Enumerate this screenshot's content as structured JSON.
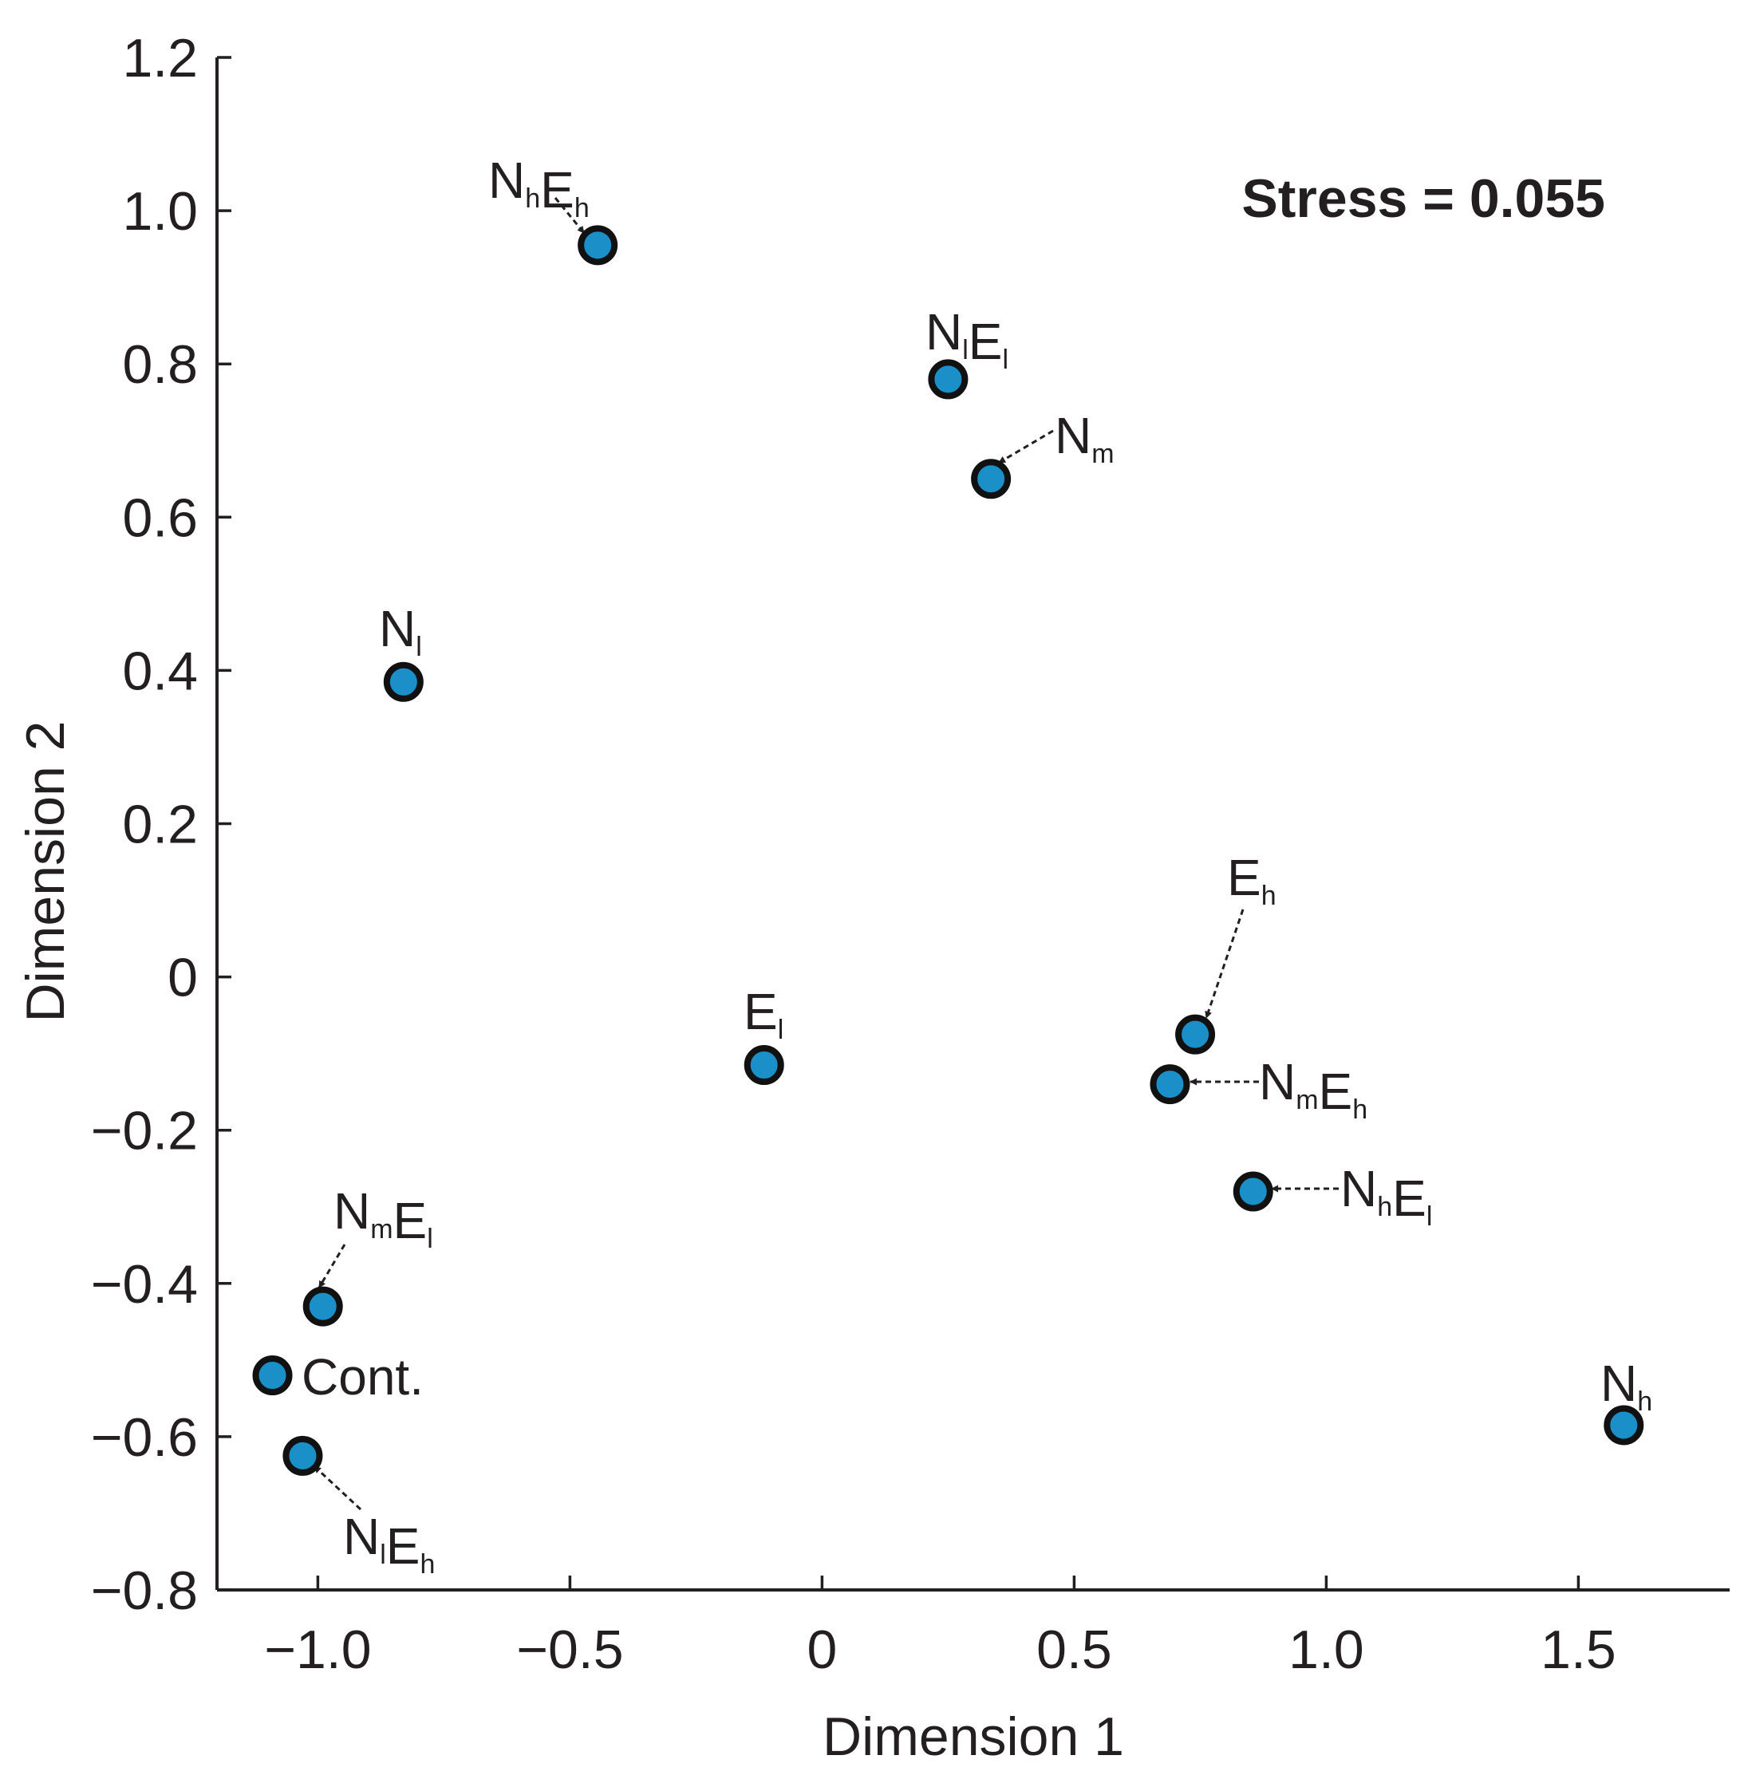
{
  "chart_data": {
    "type": "scatter",
    "title": "",
    "xlabel": "Dimension 1",
    "ylabel": "Dimension 2",
    "xlim": [
      -1.2,
      1.8
    ],
    "ylim": [
      -0.8,
      1.2
    ],
    "x_ticks": [
      {
        "value": -1.0,
        "label": "−1.0"
      },
      {
        "value": -0.5,
        "label": "−0.5"
      },
      {
        "value": 0,
        "label": "0"
      },
      {
        "value": 0.5,
        "label": "0.5"
      },
      {
        "value": 1.0,
        "label": "1.0"
      },
      {
        "value": 1.5,
        "label": "1.5"
      }
    ],
    "y_ticks": [
      {
        "value": 1.2,
        "label": "1.2"
      },
      {
        "value": 1.0,
        "label": "1.0"
      },
      {
        "value": 0.8,
        "label": "0.8"
      },
      {
        "value": 0.6,
        "label": "0.6"
      },
      {
        "value": 0.4,
        "label": "0.4"
      },
      {
        "value": 0.2,
        "label": "0.2"
      },
      {
        "value": 0,
        "label": "0"
      },
      {
        "value": -0.2,
        "label": "−0.2"
      },
      {
        "value": -0.4,
        "label": "−0.4"
      },
      {
        "value": -0.6,
        "label": "−0.6"
      },
      {
        "value": -0.8,
        "label": "−0.8"
      }
    ],
    "marker_color": "#1a8fc8",
    "annotation": "Stress = 0.055",
    "points": [
      {
        "id": "NhEh",
        "x": -0.445,
        "y": 0.955,
        "main1": "N",
        "sub1": "h",
        "main2": "E",
        "sub2": "h",
        "leader": true
      },
      {
        "id": "NlEl",
        "x": 0.25,
        "y": 0.78,
        "main1": "N",
        "sub1": "l",
        "main2": "E",
        "sub2": "l",
        "leader": false
      },
      {
        "id": "Nm",
        "x": 0.335,
        "y": 0.65,
        "main1": "N",
        "sub1": "m",
        "main2": "",
        "sub2": "",
        "leader": true
      },
      {
        "id": "Nl",
        "x": -0.83,
        "y": 0.385,
        "main1": "N",
        "sub1": "l",
        "main2": "",
        "sub2": "",
        "leader": false
      },
      {
        "id": "El",
        "x": -0.115,
        "y": -0.115,
        "main1": "E",
        "sub1": "l",
        "main2": "",
        "sub2": "",
        "leader": false
      },
      {
        "id": "Eh",
        "x": 0.74,
        "y": -0.075,
        "main1": "E",
        "sub1": "h",
        "main2": "",
        "sub2": "",
        "leader": true
      },
      {
        "id": "NmEh",
        "x": 0.69,
        "y": -0.14,
        "main1": "N",
        "sub1": "m",
        "main2": "E",
        "sub2": "h",
        "leader": true
      },
      {
        "id": "NhEl",
        "x": 0.855,
        "y": -0.28,
        "main1": "N",
        "sub1": "h",
        "main2": "E",
        "sub2": "l",
        "leader": true
      },
      {
        "id": "NmEl",
        "x": -0.99,
        "y": -0.43,
        "main1": "N",
        "sub1": "m",
        "main2": "E",
        "sub2": "l",
        "leader": true
      },
      {
        "id": "Cont",
        "x": -1.09,
        "y": -0.52,
        "main1": "Cont.",
        "sub1": "",
        "main2": "",
        "sub2": "",
        "leader": false
      },
      {
        "id": "NlEh",
        "x": -1.03,
        "y": -0.625,
        "main1": "N",
        "sub1": "l",
        "main2": "E",
        "sub2": "h",
        "leader": true
      },
      {
        "id": "Nh",
        "x": 1.59,
        "y": -0.585,
        "main1": "N",
        "sub1": "h",
        "main2": "",
        "sub2": "",
        "leader": false
      }
    ]
  }
}
